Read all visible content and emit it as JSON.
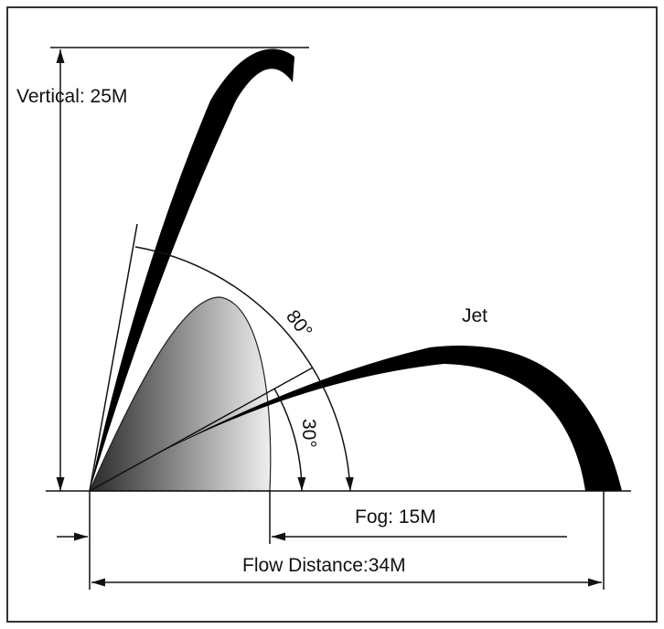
{
  "labels": {
    "vertical": "Vertical: 25M",
    "angle_high": "80°",
    "jet": "Jet",
    "angle_low": "30°",
    "fog": "Fog: 15M",
    "flow_distance": "Flow Distance:34M"
  }
}
